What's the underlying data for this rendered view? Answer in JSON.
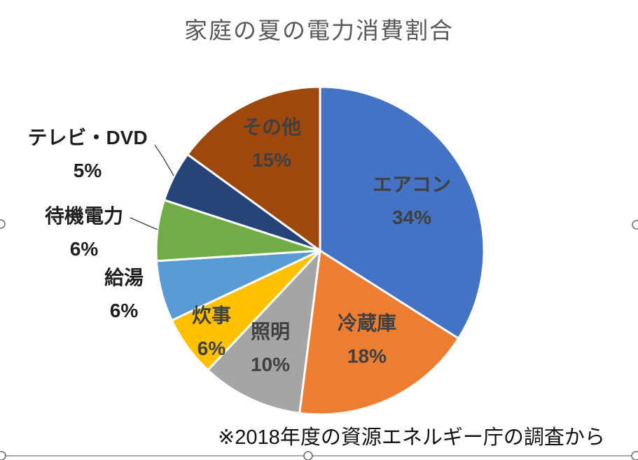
{
  "chart_data": {
    "type": "pie",
    "title": "家庭の夏の電力消費割合",
    "categories": [
      "エアコン",
      "冷蔵庫",
      "照明",
      "炊事",
      "給湯",
      "待機電力",
      "テレビ・DVD",
      "その他"
    ],
    "values": [
      34,
      18,
      10,
      6,
      6,
      6,
      5,
      15
    ],
    "unit": "%",
    "colors": [
      "#4472C4",
      "#ED7D31",
      "#A5A5A5",
      "#FFC000",
      "#5B9BD5",
      "#70AD47",
      "#264478",
      "#9E480E"
    ],
    "start_angle_deg": 0,
    "direction": "clockwise",
    "slice_border_color": "#FFFFFF",
    "label_style": "category name + percent, outside labels for small left slices with leader lines",
    "legend": "none",
    "title_color": "#595959",
    "label_color": "#404040"
  },
  "footnote": "※2018年度の資源エネルギー庁の調査から",
  "selection": {
    "state": "chart object selected",
    "handles": [
      "left-middle",
      "right-middle",
      "bottom-left",
      "bottom-center",
      "bottom-right"
    ],
    "border_color": "#8C8C8C"
  }
}
